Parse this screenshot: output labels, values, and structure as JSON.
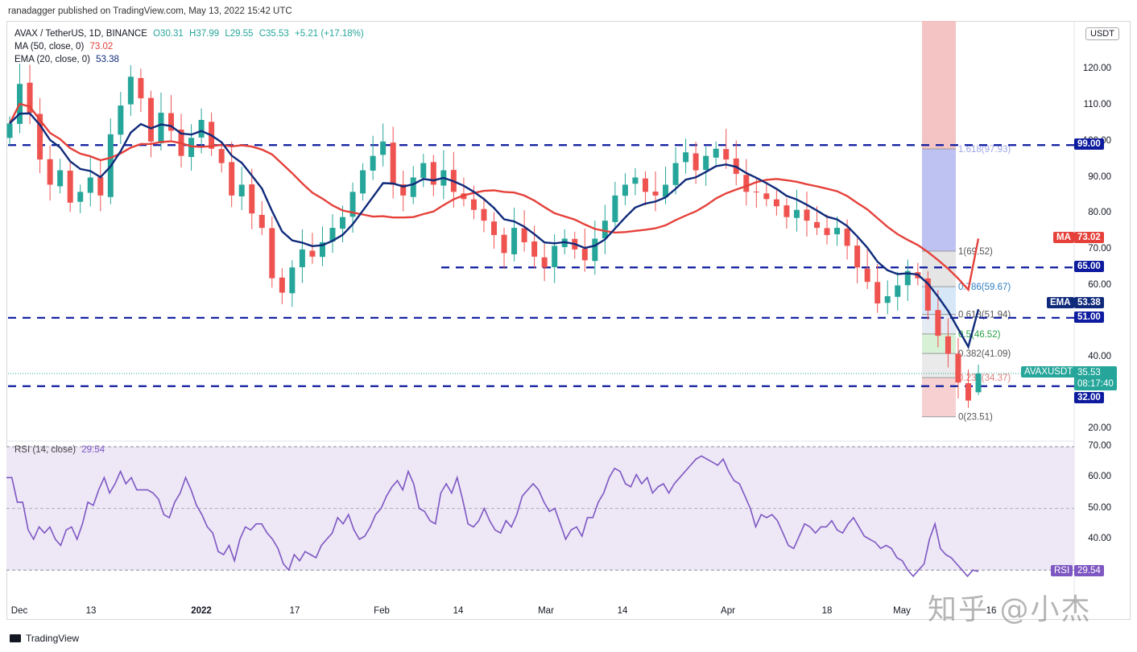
{
  "header": {
    "publisher": "ranadagger published on TradingView.com, May 13, 2022 15:42 UTC"
  },
  "legend": {
    "symbol": "AVAX / TetherUS, 1D, BINANCE",
    "o": "O30.31",
    "h": "H37.99",
    "l": "L29.55",
    "c": "C35.53",
    "chg": "+5.21 (+17.18%)",
    "ma_label": "MA (50, close, 0)",
    "ma_value": "73.02",
    "ema_label": "EMA (20, close, 0)",
    "ema_value": "53.38",
    "rsi_label": "RSI (14, close)",
    "rsi_value": "29.54"
  },
  "currency_button": "USDT",
  "yaxis_price_labels": [
    "120.00",
    "110.00",
    "100.00",
    "90.00",
    "80.00",
    "70.00",
    "60.00",
    "40.00",
    "20.00"
  ],
  "yaxis_rsi_labels": [
    "70.00",
    "60.00",
    "50.00",
    "40.00"
  ],
  "tags": {
    "r99": "99.00",
    "r65": "65.00",
    "r51": "51.00",
    "r32": "32.00",
    "ma_name": "MA",
    "ma_val": "73.02",
    "ema_name": "EMA",
    "ema_val": "53.38",
    "sym_name": "AVAXUSDT",
    "sym_val": "35.53",
    "countdown": "08:17:40",
    "rsi_name": "RSI",
    "rsi_val": "29.54"
  },
  "fib_labels": {
    "f1618": "1.618(97.93)",
    "f1": "1(69.52)",
    "f786": "0.786(59.67)",
    "f618": "0.618(51.94)",
    "f5": "0.5(46.52)",
    "f382": "0.382(41.09)",
    "f236": "0.236(34.37)",
    "f0": "0(23.51)"
  },
  "xaxis_labels": [
    "Dec",
    "13",
    "2022",
    "17",
    "Feb",
    "14",
    "Mar",
    "14",
    "Apr",
    "18",
    "May",
    "16"
  ],
  "footer": {
    "brand": "TradingView"
  },
  "watermark": "知乎 @小杰",
  "colors": {
    "up": "#26a69a",
    "down": "#ef5350",
    "ma": "#e5413a",
    "ema": "#0f2a7a",
    "rsi": "#7e57c2",
    "hline": "#0d1b9e"
  },
  "chart_data": [
    {
      "type": "candlestick",
      "title": "AVAX / TetherUS, 1D, BINANCE",
      "ylim": [
        18,
        127
      ],
      "x_labels": [
        "Dec",
        "13",
        "2022",
        "17",
        "Feb",
        "14",
        "Mar",
        "14",
        "Apr",
        "18",
        "May",
        "16"
      ],
      "last": {
        "open": 30.31,
        "high": 37.99,
        "low": 29.55,
        "close": 35.53,
        "change": 5.21,
        "change_pct": 17.18
      },
      "close_path": [
        105,
        116,
        108,
        95,
        88,
        92,
        83,
        86,
        90,
        85,
        102,
        110,
        118,
        112,
        100,
        108,
        103,
        96,
        101,
        106,
        98,
        94,
        85,
        88,
        80,
        76,
        62,
        58,
        65,
        70,
        68,
        72,
        76,
        79,
        86,
        92,
        96,
        100,
        88,
        85,
        90,
        94,
        88,
        92,
        86,
        84,
        81,
        78,
        74,
        69,
        76,
        72,
        68,
        65,
        71,
        73,
        70,
        67,
        73,
        78,
        85,
        88,
        90,
        86,
        85,
        88,
        94,
        97,
        92,
        96,
        98,
        95,
        91,
        86,
        86,
        84,
        82,
        79,
        81,
        78,
        76,
        74,
        76,
        71,
        65,
        61,
        55,
        57,
        60,
        64,
        62,
        53,
        46,
        41,
        33,
        28,
        35.53
      ],
      "horizontal_levels": [
        99.0,
        65.0,
        51.0,
        32.0
      ],
      "fibonacci": [
        {
          "level": "1.618",
          "price": 97.93
        },
        {
          "level": "1",
          "price": 69.52
        },
        {
          "level": "0.786",
          "price": 59.67
        },
        {
          "level": "0.618",
          "price": 51.94
        },
        {
          "level": "0.5",
          "price": 46.52
        },
        {
          "level": "0.382",
          "price": 41.09
        },
        {
          "level": "0.236",
          "price": 34.37
        },
        {
          "level": "0",
          "price": 23.51
        }
      ],
      "series": [
        {
          "name": "MA (50, close, 0)",
          "last": 73.02
        },
        {
          "name": "EMA (20, close, 0)",
          "last": 53.38
        }
      ]
    },
    {
      "type": "line",
      "title": "RSI (14, close)",
      "ylim": [
        30,
        72
      ],
      "levels": [
        70,
        30
      ],
      "values": [
        60,
        60,
        52,
        52,
        43,
        40,
        44,
        42,
        44,
        40,
        38,
        43,
        44,
        40,
        45,
        52,
        51,
        56,
        60,
        55,
        58,
        62,
        58,
        60,
        56,
        56,
        56,
        55,
        53,
        48,
        47,
        52,
        55,
        60,
        56,
        51,
        48,
        44,
        42,
        36,
        35,
        38,
        33,
        40,
        44,
        43,
        45,
        45,
        42,
        40,
        37,
        32,
        30,
        35,
        33,
        36,
        35,
        34,
        38,
        40,
        42,
        47,
        45,
        48,
        43,
        40,
        41,
        44,
        48,
        50,
        54,
        57,
        59,
        56,
        62,
        58,
        50,
        49,
        46,
        45,
        55,
        58,
        55,
        60,
        53,
        45,
        44,
        46,
        50,
        46,
        43,
        42,
        46,
        44,
        48,
        54,
        56,
        58,
        56,
        52,
        49,
        50,
        45,
        40,
        43,
        44,
        41,
        47,
        47,
        52,
        55,
        60,
        63,
        62,
        58,
        57,
        61,
        58,
        60,
        55,
        57,
        58,
        55,
        58,
        60,
        62,
        64,
        66,
        67,
        66,
        65,
        64,
        66,
        62,
        59,
        58,
        54,
        50,
        44,
        48,
        47,
        48,
        46,
        42,
        38,
        37,
        41,
        45,
        44,
        42,
        44,
        44,
        46,
        43,
        42,
        45,
        47,
        44,
        41,
        40,
        39,
        37,
        38,
        37,
        34,
        33,
        30,
        28,
        30,
        32,
        40,
        45,
        37,
        35,
        34,
        32,
        30,
        28,
        30,
        29.54
      ]
    }
  ]
}
